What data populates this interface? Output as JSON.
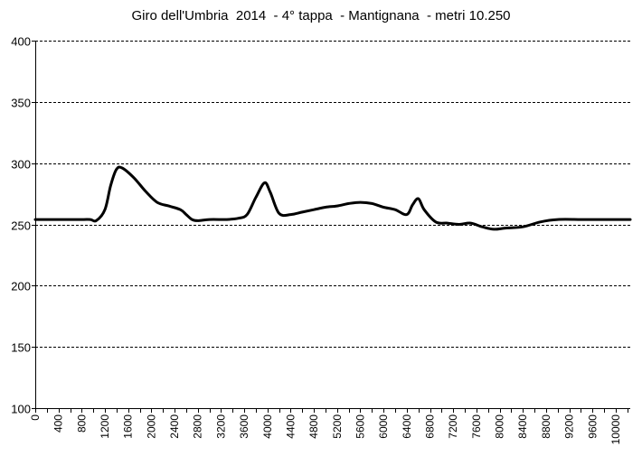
{
  "chart_data": {
    "type": "line",
    "title": "Giro dell'Umbria  2014  - 4° tappa  - Mantignana  - metri 10.250",
    "xlabel": "",
    "ylabel": "",
    "ylim": [
      100,
      400
    ],
    "xlim": [
      0,
      10250
    ],
    "y_ticks": [
      "100",
      "150",
      "200",
      "250",
      "300",
      "350",
      "400"
    ],
    "x_ticks": [
      "0",
      "400",
      "800",
      "1200",
      "1600",
      "2000",
      "2400",
      "2800",
      "3200",
      "3600",
      "4000",
      "4400",
      "4800",
      "5200",
      "5600",
      "6000",
      "6400",
      "6800",
      "7200",
      "7600",
      "8000",
      "8400",
      "8800",
      "9200",
      "9600",
      "10000"
    ],
    "grid": "horizontal-dashed",
    "series": [
      {
        "color": "#000000",
        "x": [
          0,
          400,
          800,
          950,
          1050,
          1200,
          1300,
          1400,
          1500,
          1700,
          1900,
          2100,
          2300,
          2500,
          2600,
          2700,
          2800,
          3000,
          3300,
          3500,
          3650,
          3800,
          3950,
          4050,
          4200,
          4400,
          4600,
          4800,
          5000,
          5200,
          5400,
          5600,
          5800,
          6000,
          6200,
          6400,
          6500,
          6600,
          6700,
          6900,
          7100,
          7300,
          7500,
          7700,
          7900,
          8100,
          8400,
          8700,
          9000,
          9400,
          9800,
          10250
        ],
        "y": [
          254,
          254,
          254,
          254,
          253,
          262,
          282,
          295,
          296,
          288,
          277,
          268,
          265,
          262,
          258,
          254,
          253,
          254,
          254,
          255,
          258,
          272,
          284,
          276,
          259,
          258,
          260,
          262,
          264,
          265,
          267,
          268,
          267,
          264,
          262,
          258,
          266,
          271,
          262,
          252,
          251,
          250,
          251,
          248,
          246,
          247,
          248,
          252,
          254,
          254,
          254,
          254
        ]
      }
    ]
  }
}
